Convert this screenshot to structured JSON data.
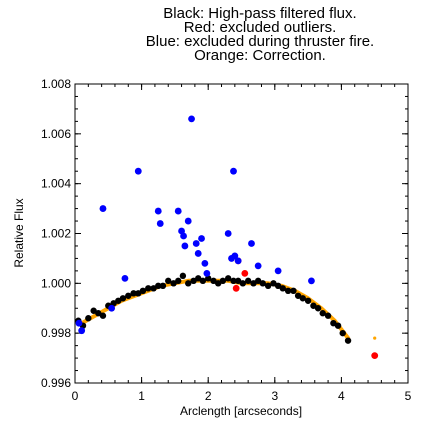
{
  "chart_data": {
    "type": "scatter",
    "title_lines": [
      "Black: High-pass filtered flux.",
      "Red: excluded outliers.",
      "Blue: excluded during thruster fire.",
      "Orange: Correction."
    ],
    "xlabel": "Arclength [arcseconds]",
    "ylabel": "Relative Flux",
    "xlim": [
      0,
      5
    ],
    "ylim": [
      0.996,
      1.008
    ],
    "xticks": [
      0,
      1,
      2,
      3,
      4,
      5
    ],
    "xtick_labels": [
      "0",
      "1",
      "2",
      "3",
      "4",
      "5"
    ],
    "yticks": [
      0.996,
      0.998,
      1.0,
      1.002,
      1.004,
      1.006,
      1.008
    ],
    "ytick_labels": [
      "0.996",
      "0.998",
      "1.000",
      "1.002",
      "1.004",
      "1.006",
      "1.008"
    ],
    "grid": false,
    "legend": "none",
    "series": [
      {
        "color": "#000000",
        "marker": "dot",
        "points": [
          [
            0.05,
            0.9985
          ],
          [
            0.12,
            0.9983
          ],
          [
            0.2,
            0.9986
          ],
          [
            0.28,
            0.9989
          ],
          [
            0.35,
            0.9988
          ],
          [
            0.42,
            0.9987
          ],
          [
            0.5,
            0.9991
          ],
          [
            0.58,
            0.9992
          ],
          [
            0.65,
            0.9993
          ],
          [
            0.72,
            0.9994
          ],
          [
            0.8,
            0.9995
          ],
          [
            0.88,
            0.9996
          ],
          [
            0.95,
            0.9996
          ],
          [
            1.02,
            0.9997
          ],
          [
            1.1,
            0.9998
          ],
          [
            1.18,
            0.9998
          ],
          [
            1.25,
            0.9999
          ],
          [
            1.32,
            0.9999
          ],
          [
            1.4,
            1.0001
          ],
          [
            1.48,
            1.0
          ],
          [
            1.55,
            1.0001
          ],
          [
            1.62,
            1.0003
          ],
          [
            1.7,
            1.0
          ],
          [
            1.78,
            1.0001
          ],
          [
            1.85,
            1.0002
          ],
          [
            1.92,
            1.0001
          ],
          [
            2.0,
            1.0002
          ],
          [
            2.08,
            1.0001
          ],
          [
            2.15,
            1.0
          ],
          [
            2.22,
            1.0001
          ],
          [
            2.3,
            1.0002
          ],
          [
            2.38,
            1.0001
          ],
          [
            2.45,
            1.0001
          ],
          [
            2.52,
            1.0
          ],
          [
            2.6,
            1.0001
          ],
          [
            2.68,
            1.0
          ],
          [
            2.75,
            1.0001
          ],
          [
            2.82,
            1.0
          ],
          [
            2.9,
            0.9999
          ],
          [
            2.98,
            1.0
          ],
          [
            3.05,
            0.9999
          ],
          [
            3.12,
            0.9998
          ],
          [
            3.2,
            0.9997
          ],
          [
            3.28,
            0.9997
          ],
          [
            3.35,
            0.9995
          ],
          [
            3.42,
            0.9994
          ],
          [
            3.5,
            0.9993
          ],
          [
            3.58,
            0.9991
          ],
          [
            3.65,
            0.999
          ],
          [
            3.72,
            0.9988
          ],
          [
            3.8,
            0.9987
          ],
          [
            3.88,
            0.9984
          ],
          [
            3.95,
            0.9983
          ],
          [
            4.02,
            0.998
          ],
          [
            4.1,
            0.9977
          ]
        ]
      },
      {
        "color": "#ff0000",
        "marker": "dot",
        "points": [
          [
            2.45,
            1.0009
          ],
          [
            2.55,
            1.0004
          ],
          [
            2.42,
            0.9998
          ],
          [
            4.5,
            0.9971
          ]
        ]
      },
      {
        "color": "#0000ff",
        "marker": "dot",
        "points": [
          [
            0.06,
            0.9984
          ],
          [
            0.1,
            0.9981
          ],
          [
            0.42,
            1.003
          ],
          [
            0.55,
            0.999
          ],
          [
            0.75,
            1.0002
          ],
          [
            0.95,
            1.0045
          ],
          [
            1.25,
            1.0029
          ],
          [
            1.28,
            1.0024
          ],
          [
            1.55,
            1.0029
          ],
          [
            1.6,
            1.0021
          ],
          [
            1.63,
            1.0019
          ],
          [
            1.65,
            1.0015
          ],
          [
            1.7,
            1.0025
          ],
          [
            1.75,
            1.0066
          ],
          [
            1.82,
            1.0016
          ],
          [
            1.85,
            1.0012
          ],
          [
            1.9,
            1.0018
          ],
          [
            1.95,
            1.0008
          ],
          [
            1.98,
            1.0004
          ],
          [
            2.3,
            1.002
          ],
          [
            2.35,
            1.001
          ],
          [
            2.38,
            1.0045
          ],
          [
            2.4,
            1.0011
          ],
          [
            2.45,
            1.0009
          ],
          [
            2.65,
            1.0016
          ],
          [
            2.75,
            1.0007
          ],
          [
            3.05,
            1.0005
          ],
          [
            3.55,
            1.0001
          ]
        ]
      }
    ],
    "correction": {
      "color": "#ffa500",
      "points": [
        [
          0.1,
          0.9984
        ],
        [
          0.3,
          0.9987
        ],
        [
          0.5,
          0.999
        ],
        [
          0.7,
          0.9993
        ],
        [
          0.9,
          0.9995
        ],
        [
          1.1,
          0.9997
        ],
        [
          1.3,
          0.9999
        ],
        [
          1.5,
          1.0
        ],
        [
          1.7,
          1.0001
        ],
        [
          1.9,
          1.0001
        ],
        [
          2.1,
          1.0001
        ],
        [
          2.3,
          1.0001
        ],
        [
          2.5,
          1.0
        ],
        [
          2.7,
          1.0
        ],
        [
          2.9,
          1.0
        ],
        [
          3.1,
          0.9999
        ],
        [
          3.3,
          0.9997
        ],
        [
          3.5,
          0.9994
        ],
        [
          3.7,
          0.999
        ],
        [
          3.9,
          0.9985
        ],
        [
          4.1,
          0.9978
        ]
      ],
      "outlier_point": [
        4.5,
        0.9978
      ]
    }
  }
}
